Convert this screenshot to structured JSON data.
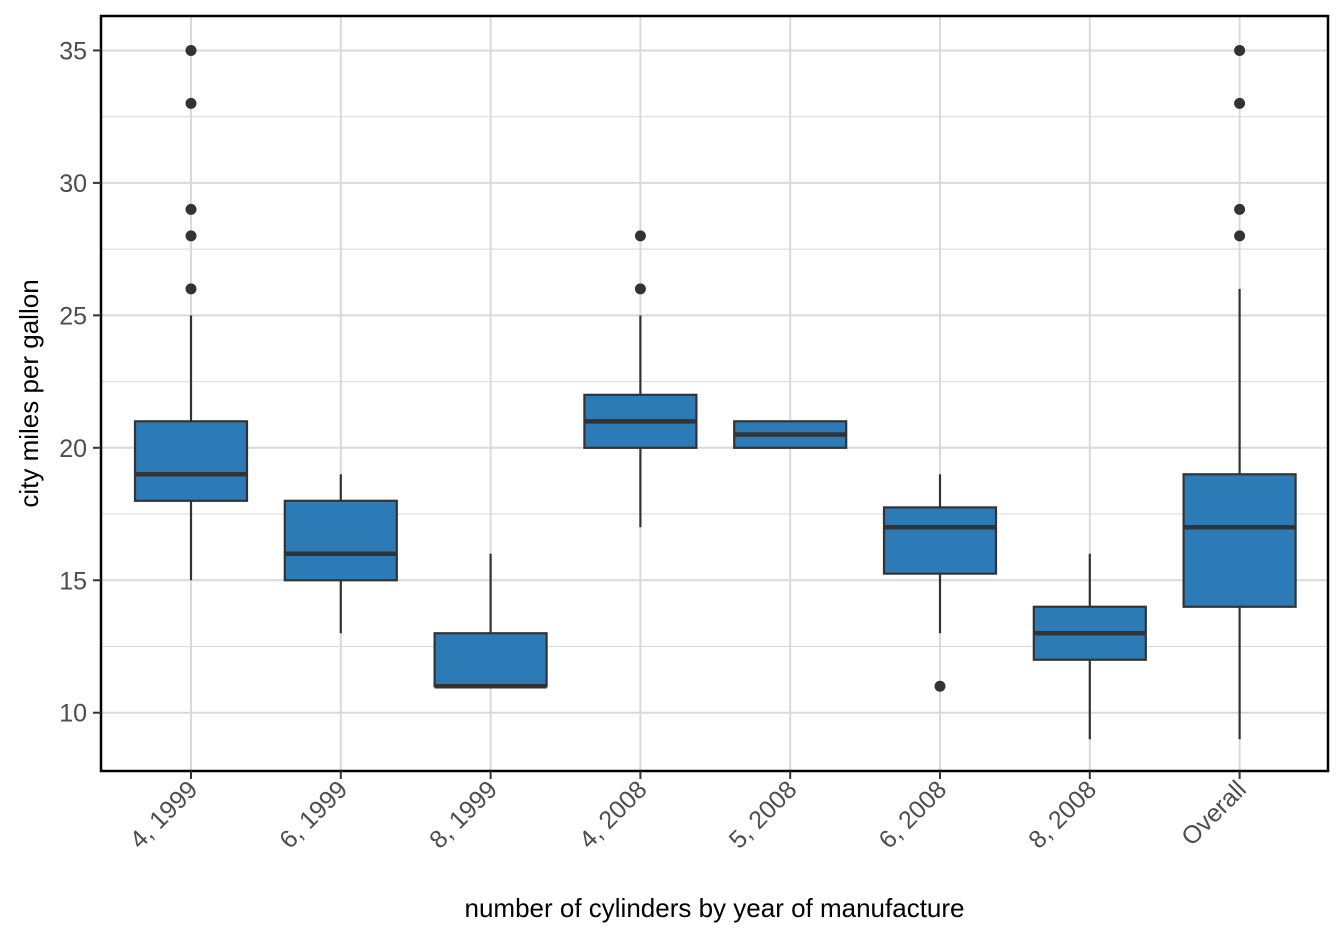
{
  "chart_data": {
    "type": "boxplot",
    "title": "",
    "xlabel": "number of cylinders by year of manufacture",
    "ylabel": "city miles per gallon",
    "ylim": [
      7.8,
      36.3
    ],
    "yticks": [
      10,
      15,
      20,
      25,
      30,
      35
    ],
    "minor_yticks": [
      12.5,
      17.5,
      22.5,
      27.5,
      32.5
    ],
    "grid": true,
    "legend": "none",
    "box_fill": "#2C7BB6",
    "box_stroke": "#333333",
    "gridline_color": "#D9D9D9",
    "categories": [
      "4, 1999",
      "6, 1999",
      "8, 1999",
      "4, 2008",
      "5, 2008",
      "6, 2008",
      "8, 2008",
      "Overall"
    ],
    "boxes": [
      {
        "category": "4, 1999",
        "lower_whisker": 15,
        "q1": 18,
        "median": 19,
        "q3": 21,
        "upper_whisker": 25,
        "outliers": [
          26,
          28,
          29,
          33,
          35
        ]
      },
      {
        "category": "6, 1999",
        "lower_whisker": 13,
        "q1": 15,
        "median": 16,
        "q3": 18,
        "upper_whisker": 19,
        "outliers": []
      },
      {
        "category": "8, 1999",
        "lower_whisker": 11,
        "q1": 11,
        "median": 11,
        "q3": 13,
        "upper_whisker": 16,
        "outliers": []
      },
      {
        "category": "4, 2008",
        "lower_whisker": 17,
        "q1": 20,
        "median": 21,
        "q3": 22,
        "upper_whisker": 25,
        "outliers": [
          26,
          28
        ]
      },
      {
        "category": "5, 2008",
        "lower_whisker": 20,
        "q1": 20,
        "median": 20.5,
        "q3": 21,
        "upper_whisker": 21,
        "outliers": []
      },
      {
        "category": "6, 2008",
        "lower_whisker": 13,
        "q1": 15.25,
        "median": 17,
        "q3": 17.75,
        "upper_whisker": 19,
        "outliers": [
          11
        ]
      },
      {
        "category": "8, 2008",
        "lower_whisker": 9,
        "q1": 12,
        "median": 13,
        "q3": 14,
        "upper_whisker": 16,
        "outliers": []
      },
      {
        "category": "Overall",
        "lower_whisker": 9,
        "q1": 14,
        "median": 17,
        "q3": 19,
        "upper_whisker": 26,
        "outliers": [
          28,
          29,
          33,
          35
        ]
      }
    ]
  }
}
